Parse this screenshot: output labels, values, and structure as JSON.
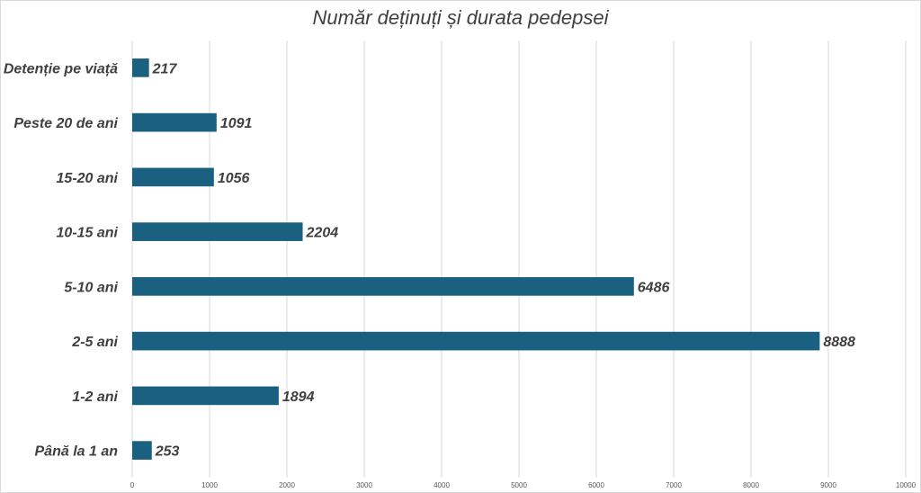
{
  "chart_data": {
    "type": "bar",
    "orientation": "horizontal",
    "title": "Număr deținuți și durata pedepsei",
    "xlabel": "",
    "ylabel": "",
    "categories": [
      "Detenție pe viață",
      "Peste 20 de ani",
      "15-20 ani",
      "10-15 ani",
      "5-10 ani",
      "2-5 ani",
      "1-2 ani",
      "Până la 1 an"
    ],
    "values": [
      217,
      1091,
      1056,
      2204,
      6486,
      8888,
      1894,
      253
    ],
    "xlim": [
      0,
      10000
    ],
    "xticks": [
      0,
      1000,
      2000,
      3000,
      4000,
      5000,
      6000,
      7000,
      8000,
      9000,
      10000
    ],
    "grid": true,
    "legend": "none",
    "bar_color": "#1a6080"
  }
}
